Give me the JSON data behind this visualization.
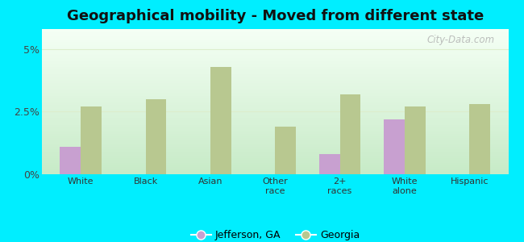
{
  "title": "Geographical mobility - Moved from different state",
  "categories": [
    "White",
    "Black",
    "Asian",
    "Other\nrace",
    "2+\nraces",
    "White\nalone",
    "Hispanic"
  ],
  "jefferson_values": [
    1.1,
    0.0,
    0.0,
    0.0,
    0.8,
    2.2,
    0.0
  ],
  "georgia_values": [
    2.7,
    3.0,
    4.3,
    1.9,
    3.2,
    2.7,
    2.8
  ],
  "jefferson_color": "#c8a0d0",
  "georgia_color": "#b8c890",
  "background_outer": "#00eeff",
  "ylim": [
    0,
    5.8
  ],
  "yticks": [
    0,
    2.5,
    5.0
  ],
  "ytick_labels": [
    "0%",
    "2.5%",
    "5%"
  ],
  "title_fontsize": 13,
  "legend_labels": [
    "Jefferson, GA",
    "Georgia"
  ],
  "watermark": "City-Data.com",
  "grid_color": "#ddeecc",
  "inner_bg_top": "#e8f8e8",
  "inner_bg_bottom": "#c8eec8"
}
